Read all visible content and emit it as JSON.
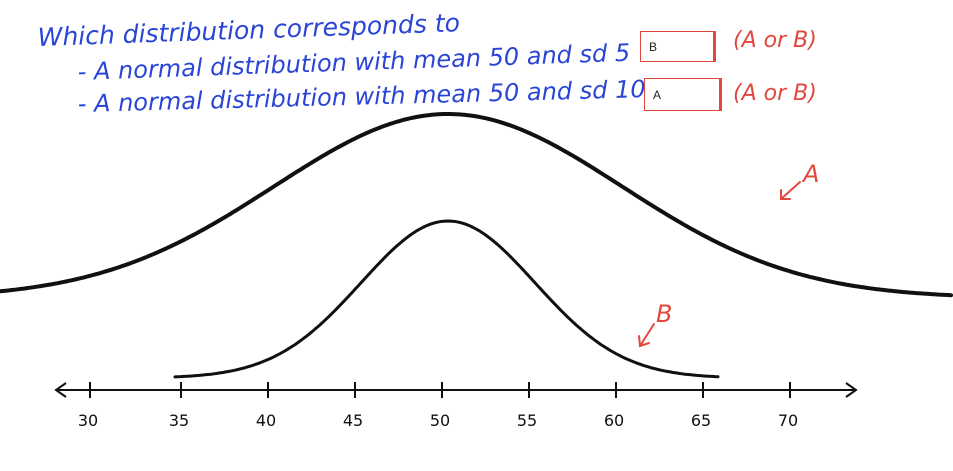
{
  "question": {
    "prompt": "Which distribution corresponds to",
    "items": [
      {
        "text": "- A normal distribution with mean 50 and sd 5",
        "answer": "B",
        "hint": "(A or B)"
      },
      {
        "text": "- A normal distribution with mean 50 and sd 10",
        "answer": "A",
        "hint": "(A or B)"
      }
    ]
  },
  "curves": [
    {
      "label": "A",
      "mean": 50,
      "sd": 10
    },
    {
      "label": "B",
      "mean": 50,
      "sd": 5
    }
  ],
  "axis": {
    "ticks": [
      "30",
      "35",
      "40",
      "45",
      "50",
      "55",
      "60",
      "65",
      "70"
    ]
  },
  "colors": {
    "handwriting_blue": "#2a45d6",
    "annotation_red": "#e2483f",
    "ink": "#111111"
  }
}
